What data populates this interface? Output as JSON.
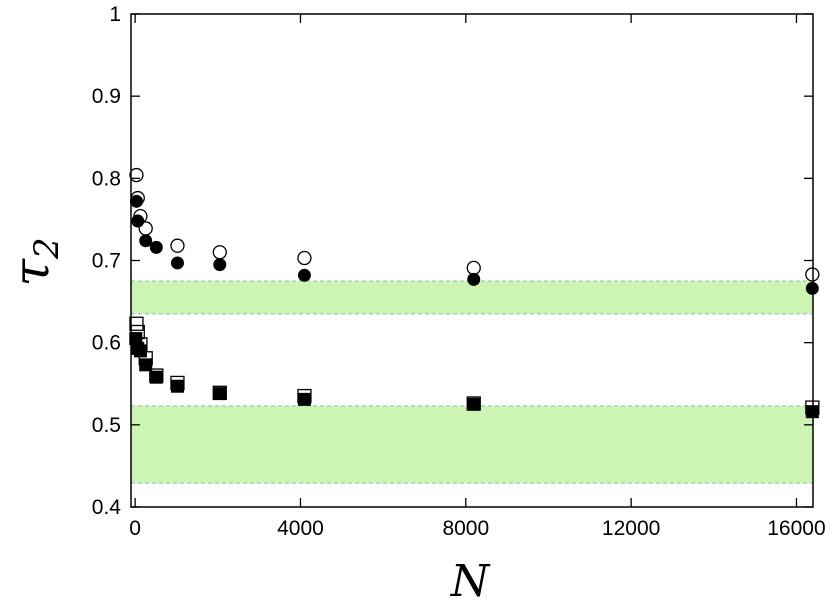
{
  "chart_data": {
    "type": "scatter",
    "title": "",
    "xlabel": "N",
    "ylabel_base": "τ",
    "ylabel_sub": "2",
    "xlim": [
      -100,
      16400
    ],
    "ylim": [
      0.4,
      1.0
    ],
    "x_ticks": [
      0,
      4000,
      8000,
      12000,
      16000
    ],
    "x_tick_labels": [
      "0",
      "4000",
      "8000",
      "12000",
      "16000"
    ],
    "y_ticks": [
      0.4,
      0.5,
      0.6,
      0.7,
      0.8,
      0.9,
      1.0
    ],
    "y_tick_labels": [
      "0.4",
      "0.5",
      "0.6",
      "0.7",
      "0.8",
      "0.9",
      "1"
    ],
    "grid": false,
    "legend": "none",
    "bands": [
      {
        "ymin": 0.635,
        "ymax": 0.675,
        "fill": "#ccf5b3",
        "edge": "#7ec7a6"
      },
      {
        "ymin": 0.429,
        "ymax": 0.523,
        "fill": "#ccf5b3",
        "edge": "#7ec7a6"
      }
    ],
    "series": [
      {
        "marker": "open-circle",
        "points": [
          [
            32,
            0.804
          ],
          [
            64,
            0.776
          ],
          [
            128,
            0.754
          ],
          [
            256,
            0.739
          ],
          [
            1024,
            0.718
          ],
          [
            2048,
            0.71
          ],
          [
            4096,
            0.703
          ],
          [
            8192,
            0.691
          ],
          [
            16384,
            0.683
          ]
        ]
      },
      {
        "marker": "filled-circle",
        "points": [
          [
            32,
            0.772
          ],
          [
            64,
            0.748
          ],
          [
            256,
            0.724
          ],
          [
            512,
            0.716
          ],
          [
            1024,
            0.697
          ],
          [
            2048,
            0.695
          ],
          [
            4096,
            0.682
          ],
          [
            8192,
            0.677
          ],
          [
            16384,
            0.666
          ]
        ]
      },
      {
        "marker": "open-square",
        "points": [
          [
            32,
            0.623
          ],
          [
            64,
            0.613
          ],
          [
            128,
            0.598
          ],
          [
            256,
            0.581
          ],
          [
            512,
            0.56
          ],
          [
            1024,
            0.551
          ],
          [
            2048,
            0.539
          ],
          [
            4096,
            0.535
          ],
          [
            8192,
            0.526
          ],
          [
            16384,
            0.521
          ]
        ]
      },
      {
        "marker": "filled-square",
        "points": [
          [
            16,
            0.605
          ],
          [
            64,
            0.593
          ],
          [
            128,
            0.59
          ],
          [
            256,
            0.573
          ],
          [
            512,
            0.558
          ],
          [
            1024,
            0.547
          ],
          [
            2048,
            0.538
          ],
          [
            4096,
            0.531
          ],
          [
            8192,
            0.525
          ],
          [
            16384,
            0.516
          ]
        ]
      }
    ]
  }
}
